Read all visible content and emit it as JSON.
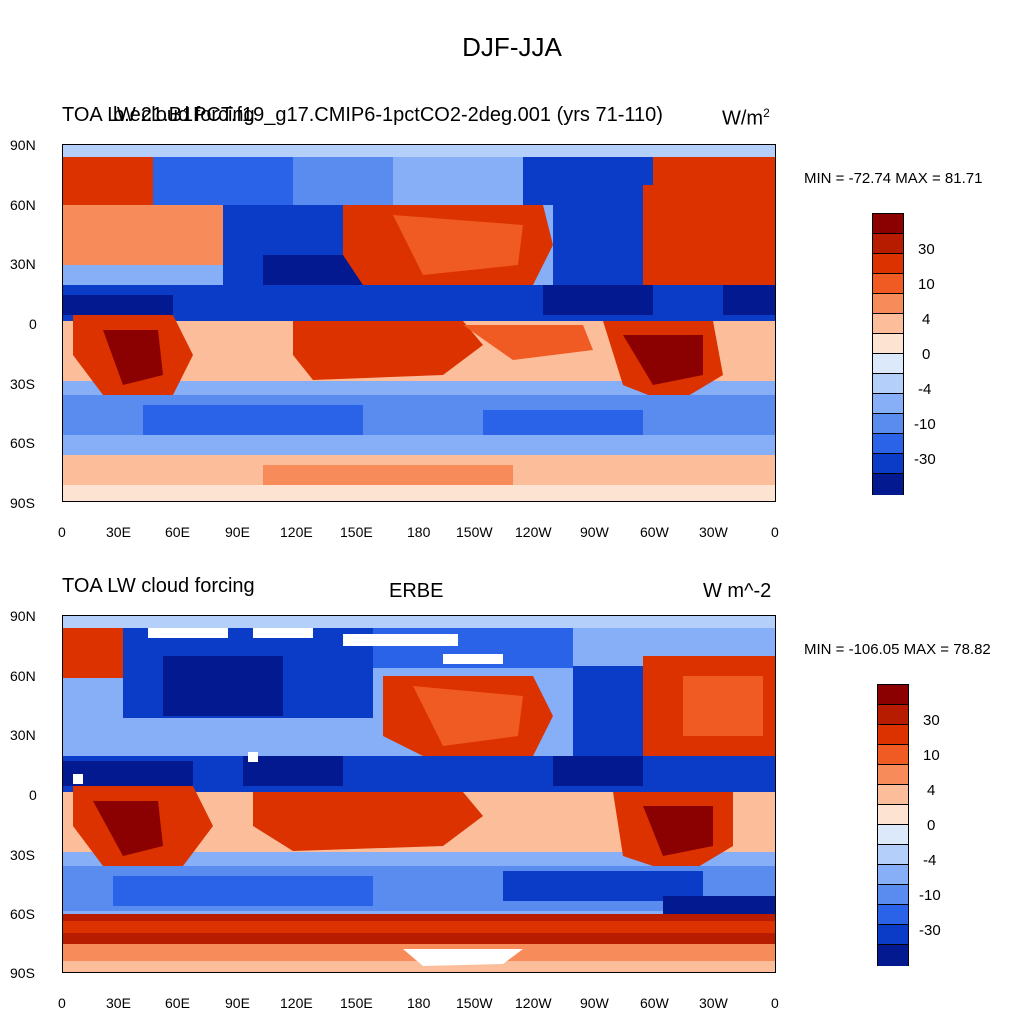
{
  "figure": {
    "title": "DJF-JJA"
  },
  "panels": [
    {
      "left_title": "TOA LW cloud forcing",
      "center_title": "b.e21.B1PCT.f19_g17.CMIP6-1pctCO2-2deg.001 (yrs 71-110)",
      "units_base": "W/m",
      "units_sup": "2",
      "stats": "MIN = -72.74 MAX =  81.71",
      "min": -72.74,
      "max": 81.71
    },
    {
      "left_title": "TOA LW cloud forcing",
      "center_title": "ERBE",
      "units": "W m^-2",
      "stats": "MIN = -106.05 MAX =  78.82",
      "min": -106.05,
      "max": 78.82
    }
  ],
  "axes": {
    "lat_ticks": [
      "90N",
      "60N",
      "30N",
      "0",
      "30S",
      "60S",
      "90S"
    ],
    "lon_ticks": [
      "0",
      "30E",
      "60E",
      "90E",
      "120E",
      "150E",
      "180",
      "150W",
      "120W",
      "90W",
      "60W",
      "30W",
      "0"
    ]
  },
  "colorbar": {
    "labels": [
      "30",
      "10",
      "4",
      "0",
      "-4",
      "-10",
      "-30"
    ],
    "colors": [
      "#8b0000",
      "#b81c00",
      "#dc3200",
      "#f05a23",
      "#f88b5a",
      "#fbbd9a",
      "#fde3d2",
      "#dbe9fb",
      "#b4cffa",
      "#86aff8",
      "#5a8cf0",
      "#2a62e8",
      "#0a3cc8",
      "#02198f"
    ]
  }
}
